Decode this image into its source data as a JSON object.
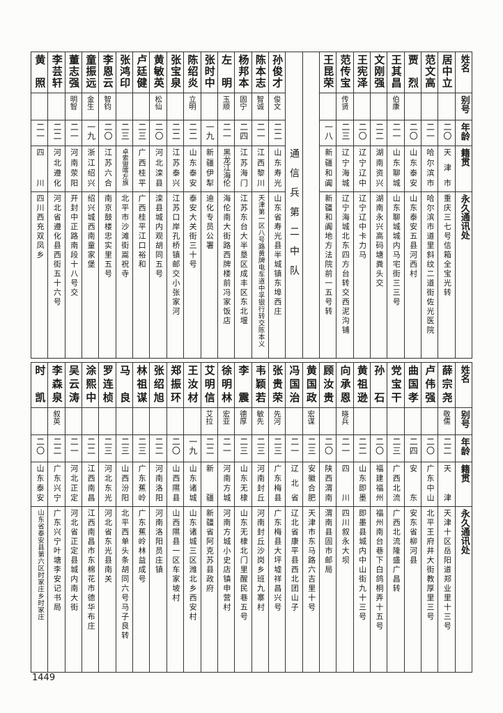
{
  "page_number": "1449",
  "headers": {
    "name": "姓名",
    "alias": "别号",
    "age": "年龄",
    "native": "籍贯",
    "address": "永久通讯处"
  },
  "top_table": {
    "right": [
      {
        "name": "居中立",
        "alias": "",
        "age": "二〇",
        "native": "天津市",
        "address": "重庆三七号信箱全宝光转"
      },
      {
        "name": "范文高",
        "alias": "",
        "age": "二一",
        "native": "哈尔滨市",
        "address": "哈尔滨市道里斜纹二道街佐光医院"
      },
      {
        "name": "贾烈",
        "alias": "",
        "age": "二〇",
        "native": "山东泰安",
        "address": "山东泰安五县河西村"
      },
      {
        "name": "王其昌",
        "alias": "伯康",
        "age": "二一",
        "native": "山东聊城",
        "address": "山东聊城城内马宅街三三号"
      },
      {
        "name": "文刚强",
        "alias": "",
        "age": "二二",
        "native": "湖南资兴",
        "address": "湖南永兴高码塘粪头交"
      },
      {
        "name": "王宪泽",
        "alias": "",
        "age": "二〇",
        "native": "辽宁辽中",
        "address": "辽宁辽中卡力马"
      },
      {
        "name": "范传宝",
        "alias": "传贤",
        "age": "二三",
        "native": "辽宁海城",
        "address": "辽宁海城北东四方台转交西泥沟铺"
      },
      {
        "name": "王昆荣",
        "alias": "",
        "age": "一八",
        "native": "新疆和阗",
        "address": "新疆和阗地方法院前一五号转"
      }
    ],
    "unit_label": "通信兵第二中队",
    "left": [
      {
        "name": "孙俊才",
        "alias": "俊文",
        "age": "二二",
        "native": "山东寿光",
        "address": "山东省寿光县半城镇东埠西庄"
      },
      {
        "name": "陈本志",
        "alias": "智诚",
        "age": "二一",
        "native": "江西黎川",
        "address": "天津第一区八号路黄牌电车道中孚银行转交陈本义"
      },
      {
        "name": "杨邦本",
        "alias": "固宁",
        "age": "二四",
        "native": "江苏海门",
        "address": "江苏东台大半垦区成丰区东北堰"
      },
      {
        "name": "左明",
        "alias": "玉顺",
        "age": "二一",
        "native": "黑龙江海伦",
        "address": "海伦南大街路西牌楼前冯家饭店"
      },
      {
        "name": "张时中",
        "alias": "",
        "age": "一九",
        "native": "新疆伊犁",
        "address": "迪化专员公署"
      },
      {
        "name": "陈绍炎",
        "alias": "立明",
        "age": "二二",
        "native": "山东泰安",
        "address": "泰安大关街三十号"
      },
      {
        "name": "张宝泉",
        "alias": "",
        "age": "二二",
        "native": "江苏泰兴",
        "address": "江苏口岸孔桥镇邮交小张家河"
      },
      {
        "name": "黄敏英",
        "alias": "松仙",
        "age": "二〇",
        "native": "河北滦县",
        "address": "滦县城内观胡同五号"
      },
      {
        "name": "卢廷健",
        "alias": "",
        "age": "二三",
        "native": "广西桂平",
        "address": "广西桂平江口裕和"
      },
      {
        "name": "张鸿印",
        "alias": "",
        "age": "二三",
        "native": "卓索盟喀左旗",
        "address": "北平市沙滩街嵩祝寺"
      },
      {
        "name": "李恩云",
        "alias": "智钧",
        "age": "二〇",
        "native": "江苏六合",
        "address": "南京鼓楼忠实里五号"
      },
      {
        "name": "童振远",
        "alias": "金生",
        "age": "一九",
        "native": "浙江绍兴",
        "address": "绍兴城西南童家堡"
      },
      {
        "name": "董志强",
        "alias": "明智",
        "age": "二一",
        "native": "河南荥阳",
        "address": "开封中正路南段十八号交"
      },
      {
        "name": "李芸轩",
        "alias": "",
        "age": "二二",
        "native": "河北遵化",
        "address": "河北省遵化县西街五十六号"
      },
      {
        "name": "黄照",
        "alias": "",
        "age": "二一",
        "native": "四川",
        "address": "四川西充双凤乡"
      }
    ]
  },
  "bottom_table": {
    "people": [
      {
        "name": "薛宗尧",
        "alias": "敬儒",
        "age": "二二",
        "native": "天津",
        "address": "天津十区岳阳道郑业里十三号"
      },
      {
        "name": "卢伟强",
        "alias": "",
        "age": "二〇",
        "native": "广东中山",
        "address": "北平王府井大街教厚里三号"
      },
      {
        "name": "曲国孝",
        "alias": "",
        "age": "二四",
        "native": "安东",
        "address": "安东省柳河县"
      },
      {
        "name": "党宝干",
        "alias": "",
        "age": "二三",
        "native": "广西北流",
        "address": "广西北流隆盛广昌转"
      },
      {
        "name": "孙石",
        "alias": "",
        "age": "二〇",
        "native": "福建福州",
        "address": "福州南台巷下白鸽桐弄十五号"
      },
      {
        "name": "黄祖逊",
        "alias": "",
        "age": "二二",
        "native": "山东即墨",
        "address": "即墨县城内中山街九十三号"
      },
      {
        "name": "向承恩",
        "alias": "晓兵",
        "age": "二一",
        "native": "四川",
        "address": "四川叙永大坝"
      },
      {
        "name": "顾汝贵",
        "alias": "",
        "age": "二〇",
        "native": "陕西渭南",
        "address": "渭南县固市邮局"
      },
      {
        "name": "黄国政",
        "alias": "宏谋",
        "age": "二三",
        "native": "安徽合肥",
        "address": "天津市东马路六吉里十号"
      },
      {
        "name": "冯国治",
        "alias": "",
        "age": "二一",
        "native": "辽北省",
        "address": "辽北省康平县西北团山子"
      },
      {
        "name": "张贵荣",
        "alias": "先河",
        "age": "二三",
        "native": "广东梅县",
        "address": "广东梅县大坪墟祥昌兴号"
      },
      {
        "name": "韦颖若",
        "alias": "敏先",
        "age": "二三",
        "native": "河南封丘",
        "address": "河南封丘沙岗乡班九寨村"
      },
      {
        "name": "李震",
        "alias": "德厚",
        "age": "二三",
        "native": "山东无棣",
        "address": "山东无棣北门里醒民巷五号"
      },
      {
        "name": "徐明林",
        "alias": "宏亚",
        "age": "二一",
        "native": "河南方城",
        "address": "河南方城小史店镇申营村"
      },
      {
        "name": "艾明信",
        "alias": "艾拉",
        "age": "二二",
        "native": "新疆",
        "address": "新疆省阿克苏县政府"
      },
      {
        "name": "王汝材",
        "alias": "",
        "age": "一九",
        "native": "山东诸城",
        "address": "山东诸城三区潍北乡西安村"
      },
      {
        "name": "郑振环",
        "alias": "",
        "age": "二〇",
        "native": "山西隰县",
        "address": "山西隰县一区车家坡村"
      },
      {
        "name": "张绍旭",
        "alias": "",
        "age": "二二",
        "native": "河南洛阳",
        "address": "河南洛阳员庄镇"
      },
      {
        "name": "林祖谋",
        "alias": "",
        "age": "二三",
        "native": "广东蕉岭",
        "address": "广东蕉岭林益成号"
      },
      {
        "name": "马良",
        "alias": "",
        "age": "二三",
        "native": "山西汾阳",
        "address": "北平西单头条胡同六号马子良转"
      },
      {
        "name": "罗连桢",
        "alias": "",
        "age": "二三",
        "native": "河北东光",
        "address": "河北省东光县南关"
      },
      {
        "name": "涂熙中",
        "alias": "",
        "age": "二二",
        "native": "江西南昌",
        "address": "江西南昌市东棉花市德华布庄"
      },
      {
        "name": "吴云涛",
        "alias": "",
        "age": "二一",
        "native": "河北正定",
        "address": "河北省正定县城内南大街"
      },
      {
        "name": "李森泉",
        "alias": "叙英",
        "age": "二二",
        "native": "广东兴宁",
        "address": "广东兴宁叶塘李安记书局"
      },
      {
        "name": "时凯",
        "alias": "",
        "age": "二〇",
        "native": "山东泰安",
        "address": "山东省泰安县第六区时家庄乡时家庄"
      }
    ]
  }
}
